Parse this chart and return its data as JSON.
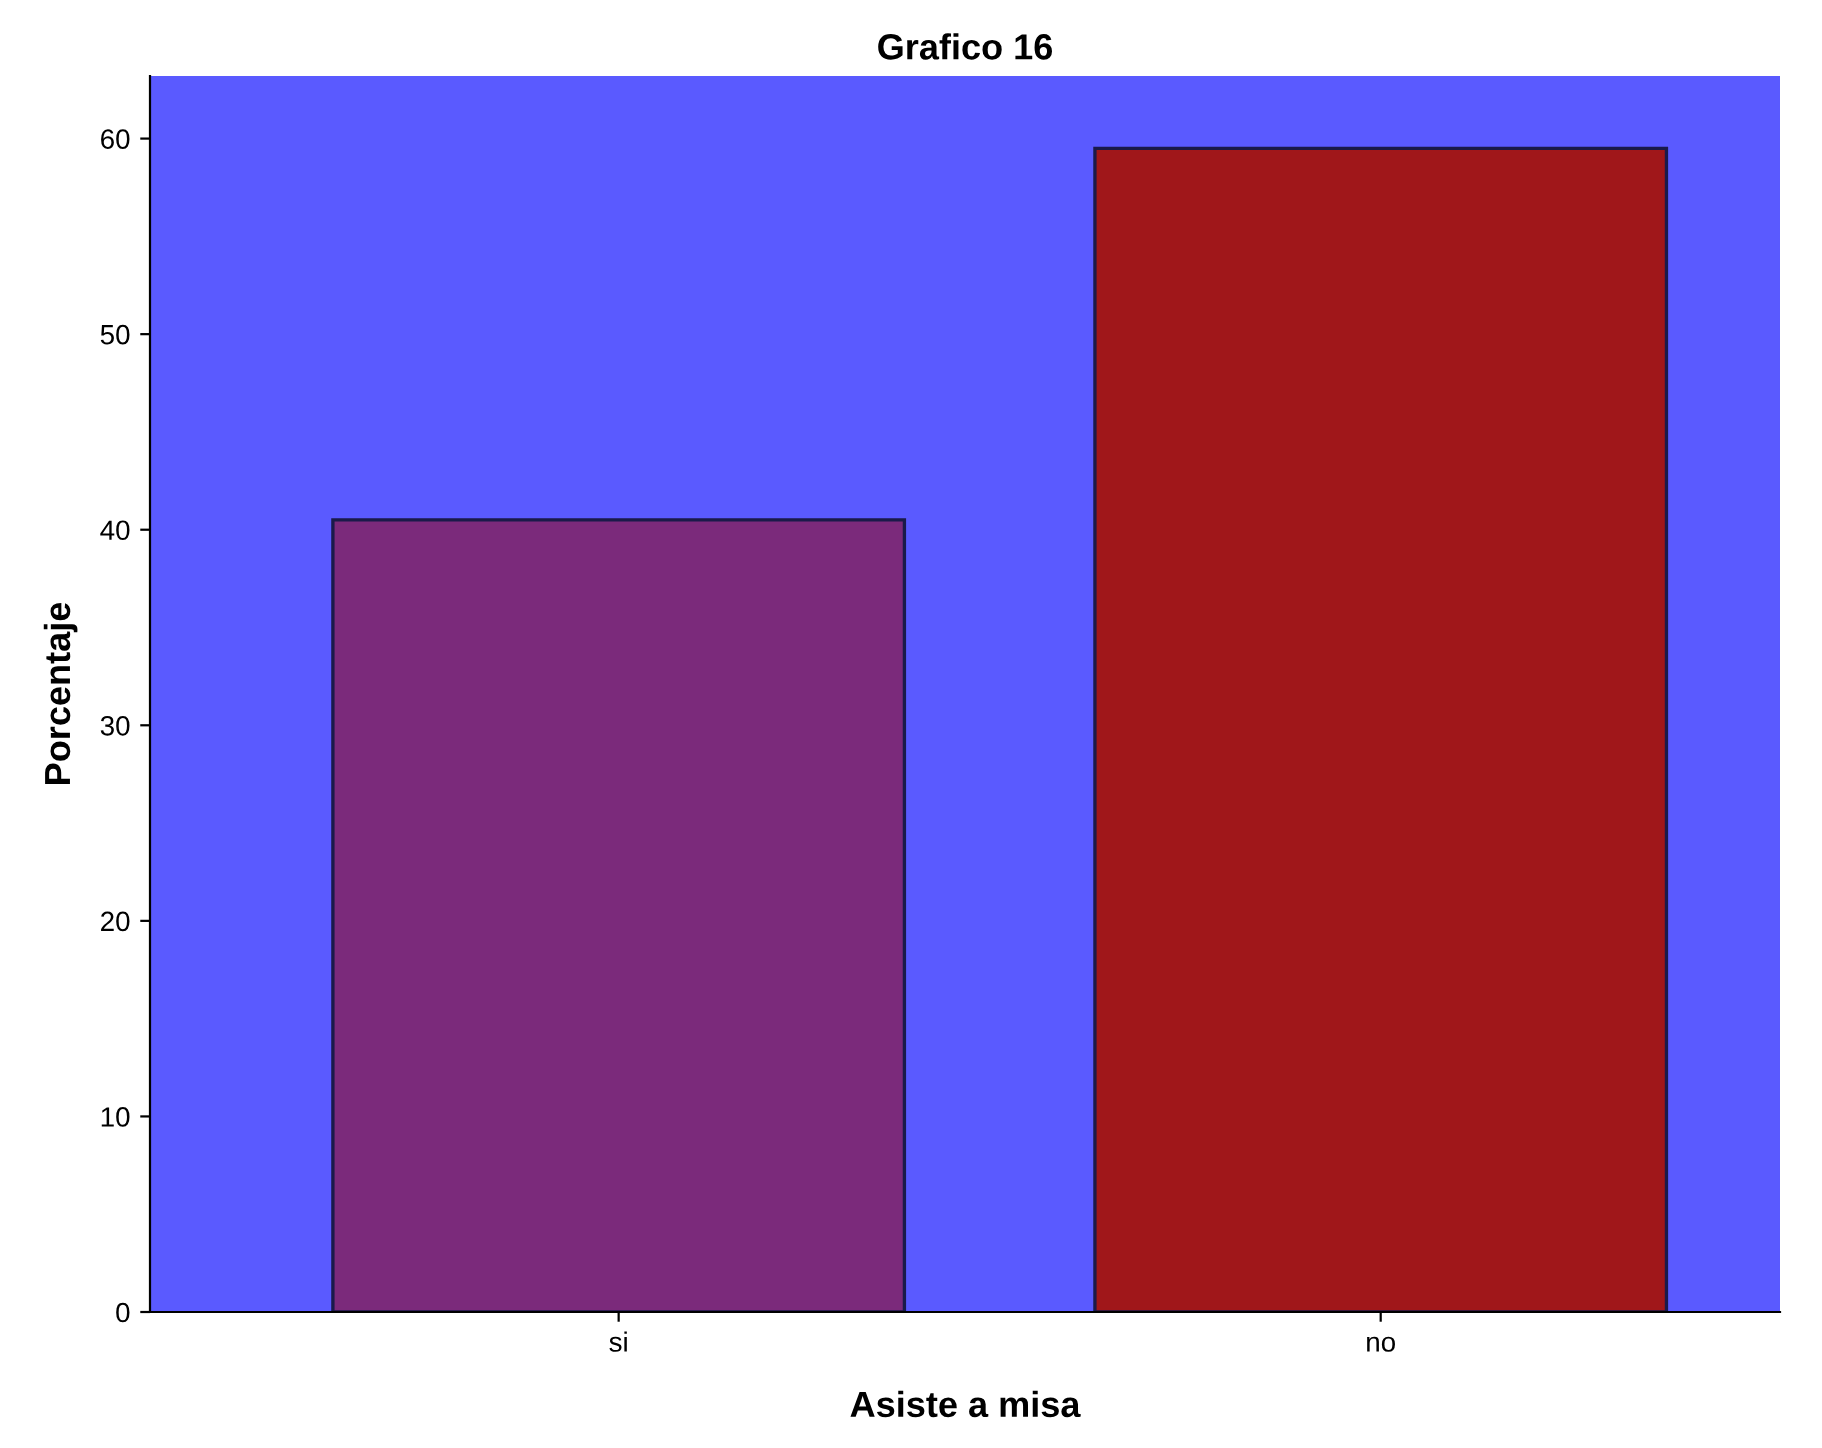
{
  "chart_data": {
    "type": "bar",
    "title": "Grafico 16",
    "xlabel": "Asiste a misa",
    "ylabel": "Porcentaje",
    "categories": [
      "si",
      "no"
    ],
    "values": [
      40.5,
      59.5
    ],
    "colors": [
      "#7b2a7b",
      "#a0171a"
    ],
    "ylim": [
      0,
      63.2
    ],
    "yticks": [
      0,
      10,
      20,
      30,
      40,
      50,
      60
    ],
    "grid": false,
    "legend": false
  }
}
